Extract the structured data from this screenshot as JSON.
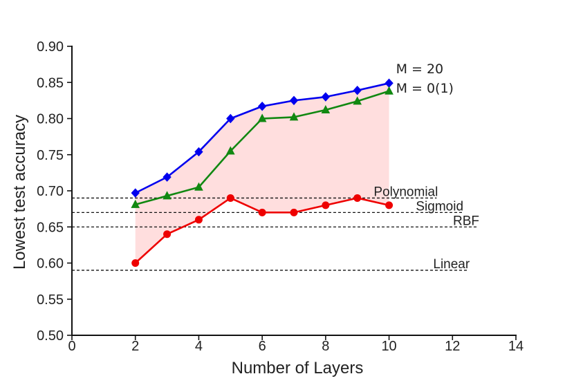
{
  "chart_data": {
    "type": "line",
    "xlabel": "Number of Layers",
    "ylabel": "Lowest test accuracy",
    "xlim": [
      0,
      14
    ],
    "ylim": [
      0.5,
      0.9
    ],
    "x_ticks": [
      "0",
      "2",
      "4",
      "6",
      "8",
      "10",
      "12",
      "14"
    ],
    "y_ticks": [
      "0.50",
      "0.55",
      "0.60",
      "0.65",
      "0.70",
      "0.75",
      "0.80",
      "0.85",
      "0.90"
    ],
    "grid": false,
    "x": [
      2,
      3,
      4,
      5,
      6,
      7,
      8,
      9,
      10
    ],
    "series": [
      {
        "name": "M = 20",
        "color": "#0000ee",
        "marker": "diamond",
        "values": [
          0.697,
          0.719,
          0.754,
          0.8,
          0.817,
          0.825,
          0.83,
          0.839,
          0.849
        ]
      },
      {
        "name": "M = 0(1)",
        "color": "#118811",
        "marker": "triangle",
        "values": [
          0.681,
          0.693,
          0.705,
          0.755,
          0.8,
          0.802,
          0.812,
          0.824,
          0.838
        ]
      },
      {
        "name": "",
        "color": "#ee0000",
        "marker": "circle",
        "values": [
          0.6,
          0.64,
          0.66,
          0.69,
          0.67,
          0.67,
          0.68,
          0.69,
          0.68
        ]
      }
    ],
    "fill_between": {
      "upper_series": 0,
      "lower_series": 2,
      "color": "#ffcccc"
    },
    "reference_lines": [
      {
        "label": "Polynomial",
        "y": 0.69,
        "x_end": 11.5
      },
      {
        "label": "Sigmoid",
        "y": 0.67,
        "x_end": 12.3
      },
      {
        "label": "RBF",
        "y": 0.65,
        "x_end": 12.8
      },
      {
        "label": "Linear",
        "y": 0.59,
        "x_end": 12.5
      }
    ]
  }
}
